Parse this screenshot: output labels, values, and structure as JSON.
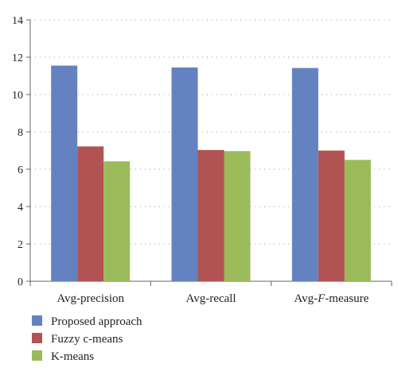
{
  "chart_data": {
    "type": "bar",
    "title": "",
    "xlabel": "",
    "ylabel": "",
    "ylim": [
      0,
      14
    ],
    "yticks": [
      0,
      2,
      4,
      6,
      8,
      10,
      12,
      14
    ],
    "grid": "horizontal dotted",
    "legend_position": "bottom-left",
    "categories": [
      {
        "label_parts": [
          "Avg-precision"
        ]
      },
      {
        "label_parts": [
          "Avg-recall"
        ]
      },
      {
        "label_parts": [
          "Avg-",
          "F",
          "-measure"
        ]
      }
    ],
    "series": [
      {
        "name": "Proposed approach",
        "color": "#6482C0",
        "values": [
          11.55,
          11.45,
          11.42
        ]
      },
      {
        "name": "Fuzzy c-means",
        "color": "#B05352",
        "values": [
          7.22,
          7.03,
          7.0
        ]
      },
      {
        "name": "K-means",
        "color": "#9BBA59",
        "values": [
          6.42,
          6.97,
          6.5
        ]
      }
    ]
  }
}
